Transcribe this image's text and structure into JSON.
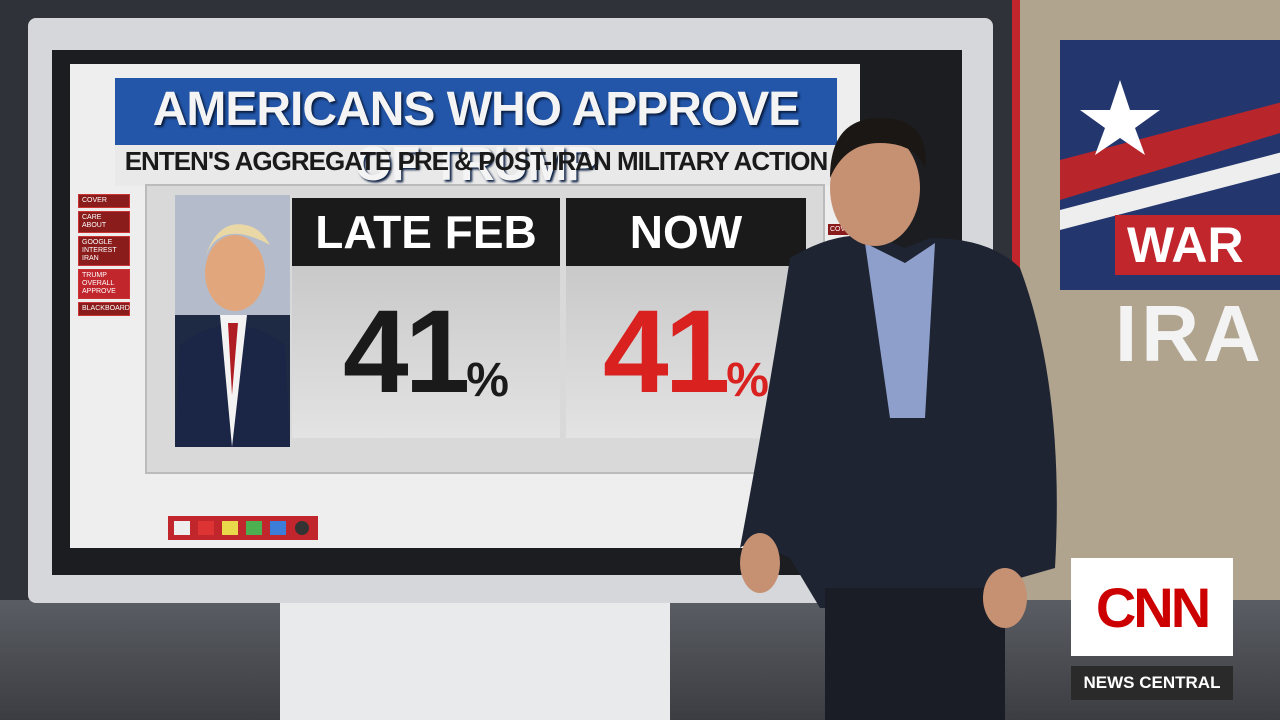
{
  "graphic": {
    "title": "AMERICANS WHO APPROVE OF TRUMP",
    "subtitle": "ENTEN'S AGGREGATE PRE & POST-IRAN MILITARY ACTION",
    "menu": [
      "COVER",
      "CARE ABOUT",
      "GOOGLE INTEREST IRAN",
      "TRUMP OVERALL APPROVE",
      "BLACKBOARD"
    ],
    "menu_right": "COVER",
    "columns": [
      {
        "label": "LATE FEB",
        "number": "41",
        "unit": "%"
      },
      {
        "label": "NOW",
        "number": "41",
        "unit": "%"
      }
    ]
  },
  "side_panel": {
    "line1": "WAR",
    "line2": "IRA"
  },
  "network": {
    "logo": "CNN",
    "show": "NEWS CENTRAL"
  }
}
